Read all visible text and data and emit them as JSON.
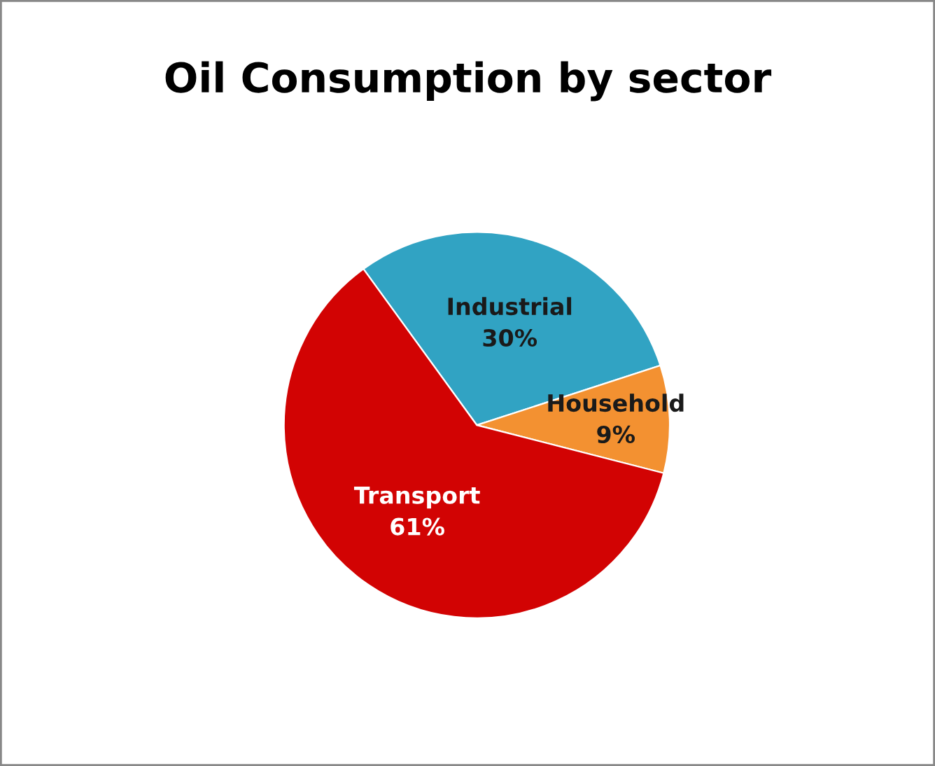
{
  "chart_data": {
    "type": "pie",
    "title": "Oil Consumption by sector",
    "categories": [
      "Industrial",
      "Household",
      "Transport"
    ],
    "values": [
      30,
      9,
      61
    ],
    "colors": [
      "#31a3c3",
      "#f39131",
      "#d20303"
    ],
    "value_labels": [
      "30%",
      "9%",
      "61%"
    ]
  }
}
